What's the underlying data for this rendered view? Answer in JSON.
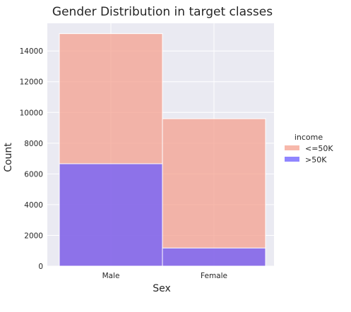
{
  "chart_data": {
    "type": "bar",
    "title": "Gender Distribution in target classes",
    "xlabel": "Sex",
    "ylabel": "Count",
    "categories": [
      "Male",
      "Female"
    ],
    "series": [
      {
        "name": "<=50K",
        "values": [
          15128,
          9592
        ],
        "color": "#f4a08f"
      },
      {
        "name": ">50K",
        "values": [
          6662,
          1179
        ],
        "color": "#6b5cff"
      }
    ],
    "ylim": [
      0,
      15800
    ],
    "yticks": [
      0,
      2000,
      4000,
      6000,
      8000,
      10000,
      12000,
      14000
    ],
    "ytick_labels": [
      "0",
      "2000",
      "4000",
      "6000",
      "8000",
      "10000",
      "12000",
      "14000"
    ],
    "grid": true,
    "background": "#eaeaf2",
    "legend": {
      "title": "income",
      "placement": "right"
    }
  }
}
